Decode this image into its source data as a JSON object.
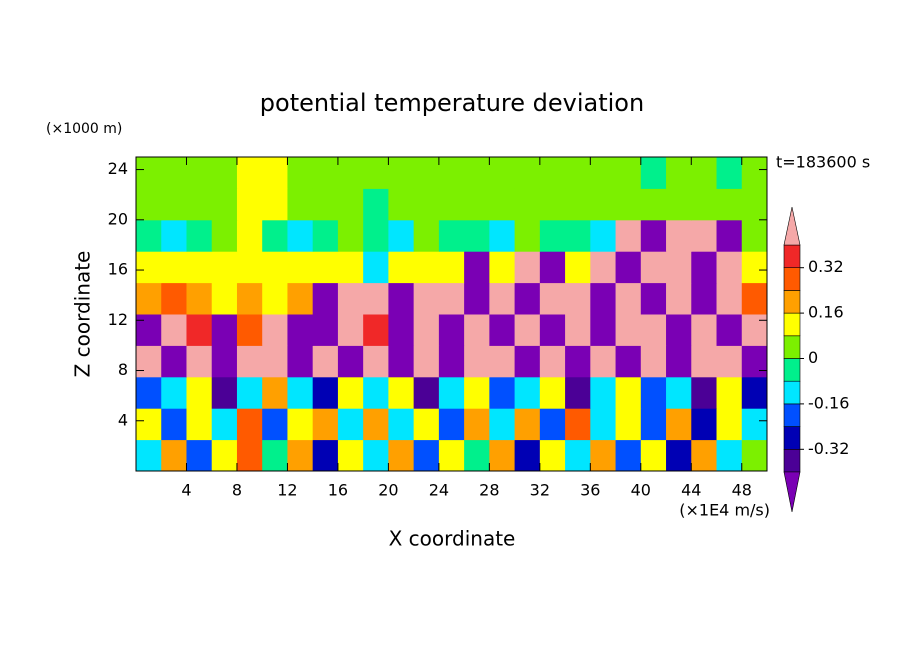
{
  "chart_data": {
    "type": "contour",
    "title": "potential temperature deviation",
    "xlabel": "X coordinate",
    "ylabel": "Z coordinate",
    "xunit": "(×1E4 m/s)",
    "yunit": "(×1000 m)",
    "annotation": "t=183600 s",
    "xlim": [
      0,
      50
    ],
    "ylim": [
      0,
      25
    ],
    "xticks": [
      4,
      8,
      12,
      16,
      20,
      24,
      28,
      32,
      36,
      40,
      44,
      48
    ],
    "yticks": [
      4,
      8,
      12,
      16,
      20,
      24
    ],
    "levels": [
      -0.4,
      -0.32,
      -0.24,
      -0.16,
      -0.08,
      0,
      0.08,
      0.16,
      0.24,
      0.32,
      0.4
    ],
    "colors": [
      "#7a00b4",
      "#4b0096",
      "#0000b4",
      "#0050ff",
      "#00e6ff",
      "#00f08c",
      "#7cf000",
      "#ffff00",
      "#ffa000",
      "#ff5a00",
      "#f02828",
      "#f5a8a8"
    ],
    "colorbar_ticks": [
      -0.32,
      -0.16,
      0,
      0.16,
      0.32
    ],
    "z": [
      [
        -0.1,
        0.2,
        -0.2,
        0.1,
        0.26,
        -0.05,
        0.2,
        -0.3,
        0.12,
        -0.12,
        0.2,
        -0.2,
        0.1,
        -0.08,
        0.22,
        -0.28,
        0.14,
        -0.1,
        0.2,
        -0.18,
        0.1,
        -0.3,
        0.18,
        -0.1,
        0.06
      ],
      [
        0.1,
        -0.18,
        0.14,
        -0.12,
        0.3,
        -0.2,
        0.1,
        0.18,
        -0.1,
        0.22,
        -0.15,
        0.12,
        -0.2,
        0.2,
        -0.1,
        0.16,
        -0.22,
        0.26,
        -0.12,
        0.1,
        -0.2,
        0.2,
        -0.26,
        0.12,
        -0.1
      ],
      [
        -0.2,
        -0.1,
        0.1,
        -0.36,
        -0.1,
        0.2,
        -0.12,
        -0.3,
        0.14,
        -0.1,
        0.1,
        -0.36,
        -0.14,
        0.1,
        -0.2,
        -0.1,
        0.12,
        -0.36,
        -0.1,
        0.14,
        -0.2,
        -0.12,
        -0.36,
        0.1,
        -0.3
      ],
      [
        0.45,
        -0.45,
        0.45,
        -0.45,
        0.45,
        0.45,
        -0.45,
        0.45,
        -0.45,
        0.45,
        -0.45,
        0.45,
        -0.45,
        0.45,
        0.45,
        -0.45,
        0.45,
        -0.45,
        0.45,
        -0.45,
        0.45,
        -0.45,
        0.45,
        0.45,
        -0.45
      ],
      [
        -0.45,
        0.45,
        0.36,
        -0.45,
        0.3,
        0.45,
        -0.45,
        -0.45,
        0.45,
        0.36,
        -0.45,
        0.45,
        -0.45,
        0.45,
        -0.45,
        0.45,
        -0.45,
        0.45,
        -0.45,
        0.45,
        0.45,
        -0.45,
        0.45,
        -0.45,
        0.45
      ],
      [
        0.2,
        0.28,
        0.18,
        0.14,
        0.2,
        0.12,
        0.18,
        -0.45,
        0.45,
        0.45,
        -0.45,
        0.45,
        0.45,
        -0.45,
        0.45,
        -0.45,
        0.45,
        0.45,
        -0.45,
        0.45,
        -0.45,
        0.45,
        -0.45,
        0.45,
        0.28
      ],
      [
        0.1,
        0.12,
        0.1,
        0.14,
        0.12,
        0.1,
        0.12,
        0.1,
        0.12,
        -0.1,
        0.1,
        0.12,
        0.1,
        -0.45,
        0.1,
        0.45,
        -0.45,
        0.12,
        0.45,
        -0.45,
        0.45,
        0.45,
        -0.45,
        0.45,
        0.1
      ],
      [
        -0.02,
        -0.1,
        -0.02,
        0.02,
        0.1,
        -0.02,
        -0.1,
        -0.02,
        0.02,
        -0.02,
        -0.1,
        0.02,
        -0.02,
        -0.02,
        -0.1,
        0.02,
        -0.02,
        -0.02,
        -0.1,
        0.45,
        -0.45,
        0.45,
        0.45,
        -0.45,
        0.02
      ],
      [
        0.04,
        0.04,
        0.04,
        0.04,
        0.12,
        0.12,
        0.04,
        0.04,
        0.04,
        -0.02,
        0.04,
        0.04,
        0.04,
        0.04,
        0.04,
        0.04,
        0.04,
        0.04,
        0.04,
        0.04,
        0.04,
        0.04,
        0.04,
        0.04,
        0.04
      ],
      [
        0.04,
        0.04,
        0.04,
        0.04,
        0.12,
        0.12,
        0.04,
        0.04,
        0.04,
        0.04,
        0.04,
        0.04,
        0.04,
        0.04,
        0.04,
        0.04,
        0.04,
        0.04,
        0.04,
        0.04,
        -0.02,
        0.04,
        0.04,
        -0.02,
        0.04
      ]
    ]
  }
}
